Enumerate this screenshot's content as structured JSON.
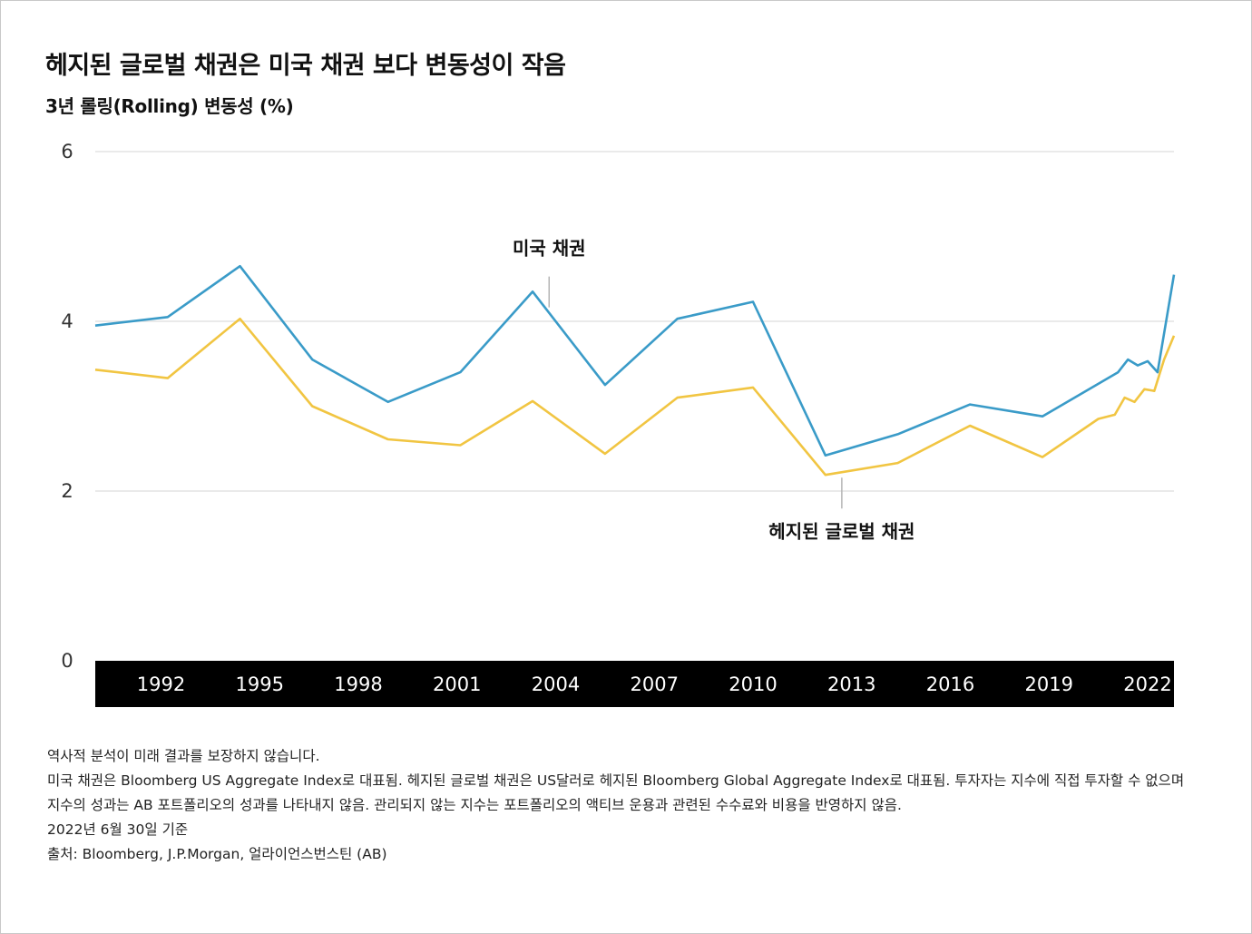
{
  "title": "헤지된 글로벌 채권은 미국 채권 보다 변동성이 작음",
  "subtitle": "3년 롤링(Rolling) 변동성 (%)",
  "colors": {
    "us": "#3a9bc8",
    "hedged": "#f1c542",
    "grid": "#e3e3e3",
    "axis_band": "#000000",
    "text": "#111111"
  },
  "chart_data": {
    "type": "line",
    "title": "헤지된 글로벌 채권은 미국 채권 보다 변동성이 작음",
    "subtitle": "3년 롤링(Rolling) 변동성 (%)",
    "xlabel": "",
    "ylabel": "3년 롤링(Rolling) 변동성 (%)",
    "ylim": [
      0,
      6
    ],
    "xlim": [
      1990.0,
      2022.8
    ],
    "yticks": [
      "0",
      "2",
      "4",
      "6"
    ],
    "xticks": [
      "1992",
      "1995",
      "1998",
      "2001",
      "2004",
      "2007",
      "2010",
      "2013",
      "2016",
      "2019",
      "2022"
    ],
    "grid": true,
    "series": [
      {
        "name": "미국 채권",
        "x": [
          1990.0,
          1992.2,
          1994.4,
          1996.6,
          1998.9,
          2001.1,
          2003.3,
          2005.5,
          2007.7,
          2010.0,
          2012.2,
          2014.4,
          2016.6,
          2018.8,
          2021.1,
          2021.4,
          2021.7,
          2022.0,
          2022.3,
          2022.8
        ],
        "values": [
          3.95,
          4.05,
          4.65,
          3.55,
          3.05,
          3.4,
          4.35,
          3.25,
          4.03,
          4.23,
          2.42,
          2.67,
          3.02,
          2.88,
          3.4,
          3.55,
          3.48,
          3.53,
          3.4,
          4.55
        ]
      },
      {
        "name": "헤지된 글로벌 채권",
        "x": [
          1990.0,
          1992.2,
          1994.4,
          1996.6,
          1998.9,
          2001.1,
          2003.3,
          2005.5,
          2007.7,
          2010.0,
          2012.2,
          2014.4,
          2016.6,
          2018.8,
          2020.5,
          2021.0,
          2021.3,
          2021.6,
          2021.9,
          2022.2,
          2022.5,
          2022.8
        ],
        "values": [
          3.43,
          3.33,
          4.03,
          3.0,
          2.61,
          2.54,
          3.06,
          2.44,
          3.1,
          3.22,
          2.19,
          2.33,
          2.77,
          2.4,
          2.85,
          2.9,
          3.1,
          3.05,
          3.2,
          3.18,
          3.55,
          3.83
        ]
      }
    ],
    "annotations": [
      {
        "text": "미국 채권",
        "series": "미국 채권",
        "x": 2003.8
      },
      {
        "text": "헤지된 글로벌 채권",
        "series": "헤지된 글로벌 채권",
        "x": 2012.7
      }
    ]
  },
  "notes": [
    "역사적 분석이 미래 결과를 보장하지 않습니다.",
    "미국 채권은 Bloomberg US Aggregate Index로 대표됨. 헤지된 글로벌 채권은 US달러로 헤지된 Bloomberg Global Aggregate Index로 대표됨. 투자자는 지수에 직접 투자할 수 없으며 지수의 성과는 AB 포트폴리오의 성과를 나타내지 않음. 관리되지 않는 지수는 포트폴리오의 액티브 운용과 관련된 수수료와 비용을 반영하지 않음.",
    "2022년 6월 30일 기준",
    "출처: Bloomberg, J.P.Morgan, 얼라이언스번스틴 (AB)"
  ]
}
